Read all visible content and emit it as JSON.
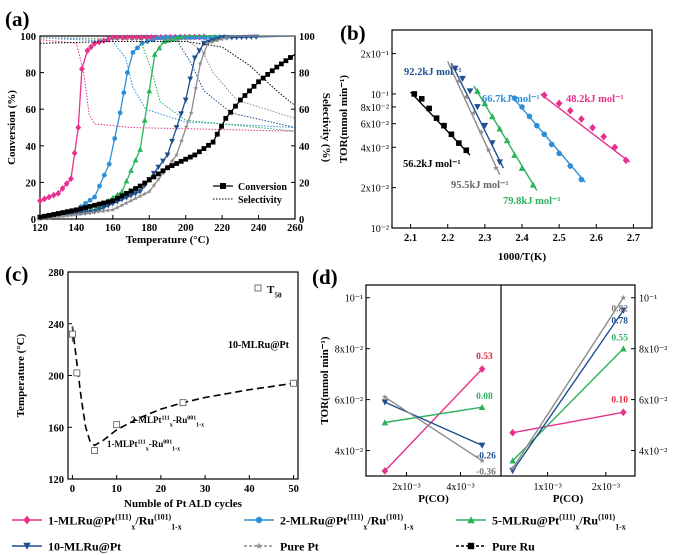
{
  "colors": {
    "s1": "#e8318c",
    "s2": "#2e8fd6",
    "s5": "#2ab35a",
    "s10": "#1f4f8f",
    "pt": "#8c8c8c",
    "ru": "#000000"
  },
  "legend": [
    {
      "pre": "1-MLRu@Pt",
      "sup1": "(111)",
      "mid": "x",
      "mid2": "/Ru",
      "sup2": "(101)",
      "sub": "1-x"
    },
    {
      "pre": "2-MLRu@Pt",
      "sup1": "(111)",
      "mid": "x",
      "mid2": "/Ru",
      "sup2": "(101)",
      "sub": "1-x"
    },
    {
      "pre": "5-MLRu@Pt",
      "sup1": "(111)",
      "mid": "x",
      "mid2": "/Ru",
      "sup2": "(101)",
      "sub": "1-x"
    },
    {
      "pre": "10-MLRu@Pt"
    },
    {
      "pre": "Pure Pt"
    },
    {
      "pre": "Pure Ru"
    }
  ],
  "chart_data": [
    {
      "panel": "(a)",
      "type": "line",
      "xlabel": "Temperature (°C)",
      "ylabel": "Conversion (%)",
      "y2label": "Selectivity (%)",
      "xlim": [
        120,
        260
      ],
      "ylim": [
        0,
        100
      ],
      "xticks": [
        "120",
        "140",
        "160",
        "180",
        "200",
        "220",
        "240",
        "260"
      ],
      "yticks": [
        "0",
        "20",
        "40",
        "60",
        "80",
        "100"
      ],
      "y2ticks": [
        "0",
        "20",
        "40",
        "60",
        "80",
        "100"
      ],
      "legend_entries": [
        "Conversion",
        "Selectivity"
      ],
      "series": [
        {
          "key": "s1",
          "conversion": [
            [
              120,
              10
            ],
            [
              130,
              14
            ],
            [
              137,
              22
            ],
            [
              141,
              50
            ],
            [
              143,
              82
            ],
            [
              146,
              92
            ],
            [
              150,
              96
            ],
            [
              160,
              99
            ],
            [
              260,
              100
            ]
          ],
          "selectivity": [
            [
              120,
              98
            ],
            [
              140,
              96
            ],
            [
              144,
              80
            ],
            [
              147,
              57
            ],
            [
              150,
              52
            ],
            [
              170,
              50
            ],
            [
              260,
              48
            ]
          ]
        },
        {
          "key": "s2",
          "conversion": [
            [
              120,
              1
            ],
            [
              140,
              5
            ],
            [
              150,
              12
            ],
            [
              158,
              30
            ],
            [
              164,
              58
            ],
            [
              168,
              80
            ],
            [
              171,
              91
            ],
            [
              176,
              96
            ],
            [
              185,
              99
            ],
            [
              260,
              100
            ]
          ],
          "selectivity": [
            [
              120,
              99
            ],
            [
              160,
              97
            ],
            [
              167,
              88
            ],
            [
              171,
              72
            ],
            [
              178,
              60
            ],
            [
              200,
              53
            ],
            [
              260,
              50
            ]
          ]
        },
        {
          "key": "s5",
          "conversion": [
            [
              120,
              1
            ],
            [
              150,
              5
            ],
            [
              165,
              15
            ],
            [
              175,
              38
            ],
            [
              180,
              70
            ],
            [
              183,
              90
            ],
            [
              188,
              97
            ],
            [
              200,
              100
            ],
            [
              260,
              100
            ]
          ],
          "selectivity": [
            [
              120,
              99
            ],
            [
              175,
              98
            ],
            [
              181,
              82
            ],
            [
              186,
              64
            ],
            [
              200,
              54
            ],
            [
              260,
              48
            ]
          ]
        },
        {
          "key": "s10",
          "conversion": [
            [
              120,
              1
            ],
            [
              150,
              4
            ],
            [
              175,
              15
            ],
            [
              190,
              35
            ],
            [
              200,
              65
            ],
            [
              205,
              88
            ],
            [
              210,
              96
            ],
            [
              220,
              99
            ],
            [
              260,
              100
            ]
          ],
          "selectivity": [
            [
              120,
              99
            ],
            [
              195,
              98
            ],
            [
              203,
              85
            ],
            [
              210,
              70
            ],
            [
              225,
              58
            ],
            [
              260,
              50
            ]
          ]
        },
        {
          "key": "pt",
          "conversion": [
            [
              120,
              0
            ],
            [
              160,
              5
            ],
            [
              180,
              15
            ],
            [
              195,
              35
            ],
            [
              203,
              58
            ],
            [
              208,
              85
            ],
            [
              212,
              96
            ],
            [
              225,
              100
            ],
            [
              260,
              100
            ]
          ],
          "selectivity": [
            [
              120,
              99
            ],
            [
              200,
              98
            ],
            [
              209,
              92
            ],
            [
              215,
              80
            ],
            [
              228,
              65
            ],
            [
              260,
              55
            ]
          ]
        },
        {
          "key": "ru",
          "conversion": [
            [
              120,
              1
            ],
            [
              140,
              5
            ],
            [
              160,
              10
            ],
            [
              175,
              18
            ],
            [
              190,
              28
            ],
            [
              205,
              35
            ],
            [
              215,
              42
            ],
            [
              222,
              55
            ],
            [
              230,
              65
            ],
            [
              240,
              75
            ],
            [
              250,
              83
            ],
            [
              260,
              90
            ]
          ],
          "selectivity": [
            [
              120,
              96
            ],
            [
              160,
              97
            ],
            [
              200,
              97
            ],
            [
              220,
              94
            ],
            [
              235,
              84
            ],
            [
              250,
              70
            ],
            [
              260,
              62
            ]
          ]
        }
      ]
    },
    {
      "panel": "(b)",
      "type": "scatter",
      "xlabel": "1000/T(K)",
      "ylabel": "TOR(mmol min⁻¹)",
      "xlim": [
        2.05,
        2.75
      ],
      "ylim": [
        0.01,
        0.3
      ],
      "yscale": "log",
      "xticks": [
        "2.1",
        "2.2",
        "2.3",
        "2.4",
        "2.5",
        "2.6",
        "2.7"
      ],
      "yticks": [
        {
          "v": 0.01,
          "label": "10⁻²"
        },
        {
          "v": 0.02,
          "label": "2x10⁻²"
        },
        {
          "v": 0.04,
          "label": "4x10⁻²"
        },
        {
          "v": 0.06,
          "label": "6x10⁻²"
        },
        {
          "v": 0.08,
          "label": "8x10⁻²"
        },
        {
          "v": 0.1,
          "label": "10⁻¹"
        },
        {
          "v": 0.2,
          "label": "2x10⁻¹"
        }
      ],
      "annotations": [
        {
          "text": "92.2kJ mol⁻¹",
          "key": "s10"
        },
        {
          "text": "66.7kJ mol⁻¹",
          "key": "s2"
        },
        {
          "text": "48.2kJ mol⁻¹",
          "key": "s1"
        },
        {
          "text": "56.2kJ mol⁻¹",
          "key": "ru"
        },
        {
          "text": "95.5kJ mol⁻¹",
          "key": "pt"
        },
        {
          "text": "79.8kJ mol⁻¹",
          "key": "s5"
        }
      ],
      "series": [
        {
          "key": "ru",
          "x": [
            2.11,
            2.13,
            2.15,
            2.17,
            2.19,
            2.21,
            2.23,
            2.25
          ],
          "y": [
            0.1,
            0.092,
            0.078,
            0.066,
            0.058,
            0.05,
            0.043,
            0.038
          ],
          "fit": [
            [
              2.1,
              0.103
            ],
            [
              2.26,
              0.035
            ]
          ]
        },
        {
          "key": "s10",
          "x": [
            2.22,
            2.24,
            2.26,
            2.28,
            2.3,
            2.32,
            2.34
          ],
          "y": [
            0.155,
            0.13,
            0.105,
            0.08,
            0.058,
            0.043,
            0.031
          ],
          "fit": [
            [
              2.21,
              0.17
            ],
            [
              2.35,
              0.028
            ]
          ]
        },
        {
          "key": "pt",
          "x": [
            2.21,
            2.23,
            2.25,
            2.27,
            2.29,
            2.31,
            2.33
          ],
          "y": [
            0.16,
            0.125,
            0.095,
            0.072,
            0.052,
            0.038,
            0.028
          ],
          "fit": [
            [
              2.2,
              0.175
            ],
            [
              2.34,
              0.025
            ]
          ]
        },
        {
          "key": "s5",
          "x": [
            2.28,
            2.3,
            2.32,
            2.34,
            2.36,
            2.38,
            2.4,
            2.43
          ],
          "y": [
            0.105,
            0.085,
            0.068,
            0.055,
            0.045,
            0.035,
            0.028,
            0.021
          ],
          "fit": [
            [
              2.27,
              0.115
            ],
            [
              2.44,
              0.019
            ]
          ]
        },
        {
          "key": "s2",
          "x": [
            2.38,
            2.4,
            2.42,
            2.44,
            2.46,
            2.48,
            2.5,
            2.53,
            2.56
          ],
          "y": [
            0.093,
            0.08,
            0.068,
            0.058,
            0.05,
            0.042,
            0.036,
            0.029,
            0.023
          ],
          "fit": [
            [
              2.37,
              0.098
            ],
            [
              2.57,
              0.022
            ]
          ]
        },
        {
          "key": "s1",
          "x": [
            2.46,
            2.5,
            2.53,
            2.56,
            2.59,
            2.62,
            2.65,
            2.68
          ],
          "y": [
            0.098,
            0.085,
            0.075,
            0.065,
            0.056,
            0.048,
            0.04,
            0.032
          ],
          "fit": [
            [
              2.45,
              0.1
            ],
            [
              2.69,
              0.031
            ]
          ]
        }
      ]
    },
    {
      "panel": "(c)",
      "type": "scatter",
      "xlabel": "Numble of Pt ALD cycles",
      "ylabel": "Temperature (°C)",
      "xlim": [
        -1,
        51
      ],
      "ylim": [
        120,
        280
      ],
      "xticks": [
        "0",
        "10",
        "20",
        "30",
        "40",
        "50"
      ],
      "yticks": [
        "120",
        "160",
        "200",
        "240",
        "280"
      ],
      "legend_entry": "T",
      "legend_sub": "50",
      "points": [
        [
          0,
          232
        ],
        [
          1,
          202
        ],
        [
          5,
          142
        ],
        [
          10,
          162
        ],
        [
          25,
          179
        ],
        [
          50,
          194
        ]
      ],
      "fit": [
        [
          0,
          238
        ],
        [
          1,
          210
        ],
        [
          2,
          182
        ],
        [
          3,
          160
        ],
        [
          4,
          149
        ],
        [
          5,
          146
        ],
        [
          7,
          150
        ],
        [
          10,
          158
        ],
        [
          15,
          167
        ],
        [
          20,
          174
        ],
        [
          25,
          179
        ],
        [
          30,
          183
        ],
        [
          40,
          189
        ],
        [
          50,
          194
        ]
      ],
      "labels": [
        {
          "pre": "10-MLRu@Pt"
        },
        {
          "pre": "2-MLPt",
          "sup1": "111",
          "sub1": "x",
          "mid": "-Ru",
          "sup2": "001",
          "sub2": "1-x"
        },
        {
          "pre": "1-MLPt",
          "sup1": "111",
          "sub1": "x",
          "mid": "-Ru",
          "sup2": "001",
          "sub2": "1-x"
        }
      ]
    },
    {
      "panel": "(d)",
      "type": "line",
      "ylabel": "TOR(mmol min⁻¹)",
      "left": {
        "xlabel": "P(CO)",
        "xticks": [
          "2x10⁻³",
          "4x10⁻³"
        ],
        "yticks": [
          "4x10⁻²",
          "6x10⁻²",
          "8x10⁻²",
          "10⁻¹"
        ],
        "ylim": [
          0.03,
          0.105
        ],
        "xlim": [
          0.0005,
          0.0055
        ],
        "series": [
          {
            "key": "s1",
            "order": "0.53",
            "x": [
              0.0012,
              0.0048
            ],
            "y": [
              0.032,
              0.072
            ]
          },
          {
            "key": "s5",
            "order": "0.08",
            "x": [
              0.0012,
              0.0048
            ],
            "y": [
              0.051,
              0.057
            ]
          },
          {
            "key": "s10",
            "order": "-0.26",
            "x": [
              0.0012,
              0.0048
            ],
            "y": [
              0.059,
              0.042
            ]
          },
          {
            "key": "pt",
            "order": "-0.36",
            "x": [
              0.0012,
              0.0048
            ],
            "y": [
              0.061,
              0.036
            ]
          }
        ]
      },
      "right": {
        "xlabel": "P(CO)",
        "xticks": [
          "1x10⁻³",
          "2x10⁻³"
        ],
        "yticks": [
          "4x10⁻²",
          "6x10⁻²",
          "8x10⁻²",
          "10⁻¹"
        ],
        "ylim": [
          0.03,
          0.105
        ],
        "xlim": [
          0.0002,
          0.0025
        ],
        "series": [
          {
            "key": "s1",
            "order": "0.10",
            "x": [
              0.0004,
              0.0023
            ],
            "y": [
              0.047,
              0.055
            ]
          },
          {
            "key": "s5",
            "order": "0.55",
            "x": [
              0.0004,
              0.0023
            ],
            "y": [
              0.036,
              0.08
            ]
          },
          {
            "key": "s10",
            "order": "0.78",
            "x": [
              0.0004,
              0.0023
            ],
            "y": [
              0.032,
              0.095
            ]
          },
          {
            "key": "pt",
            "order": "0.82",
            "x": [
              0.0004,
              0.0023
            ],
            "y": [
              0.033,
              0.1
            ]
          }
        ]
      }
    }
  ]
}
